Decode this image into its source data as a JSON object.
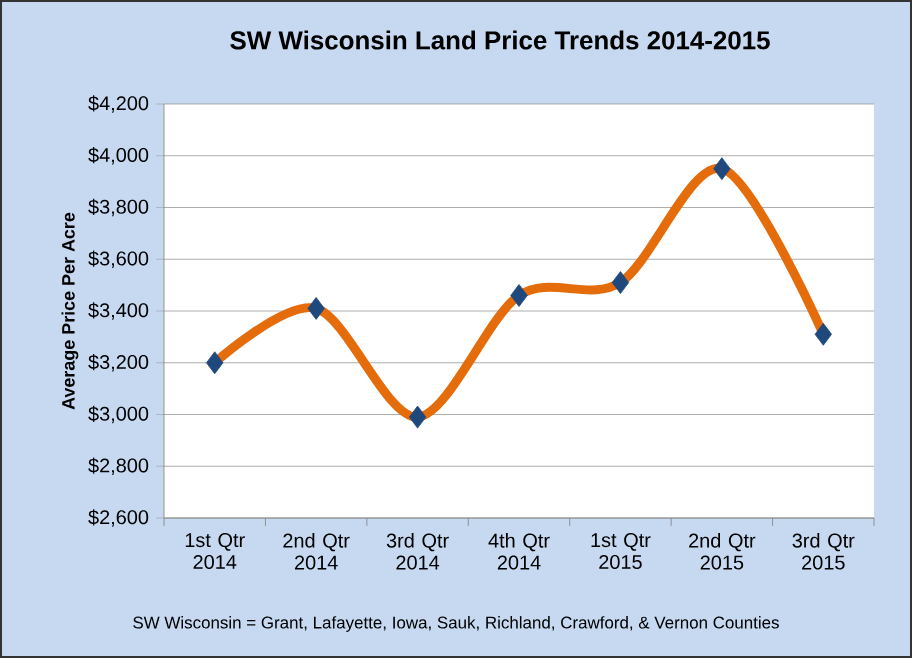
{
  "chart_data": {
    "type": "line",
    "title": "SW Wisconsin Land Price Trends 2014-2015",
    "ylabel": "Average Price Per Acre",
    "categories": [
      "1st Qtr 2014",
      "2nd Qtr 2014",
      "3rd Qtr 2014",
      "4th Qtr 2014",
      "1st Qtr 2015",
      "2nd Qtr 2015",
      "3rd Qtr 2015"
    ],
    "series": [
      {
        "color": "#e46c0a",
        "colors": [
          "#1f497d",
          "#1f497d",
          "#1f497d",
          "#1f497d",
          "#1f497d",
          "#1f497d",
          "#1f497d"
        ],
        "values": [
          3200,
          3410,
          2990,
          3460,
          3510,
          3950,
          3310
        ]
      }
    ],
    "ylim": [
      2600,
      4200
    ],
    "yticks": [
      {
        "value": 2600,
        "label": "$2,600"
      },
      {
        "value": 2800,
        "label": "$2,800"
      },
      {
        "value": 3000,
        "label": "$3,000"
      },
      {
        "value": 3200,
        "label": "$3,200"
      },
      {
        "value": 3400,
        "label": "$3,400"
      },
      {
        "value": 3600,
        "label": "$3,600"
      },
      {
        "value": 3800,
        "label": "$3,800"
      },
      {
        "value": 4000,
        "label": "$4,000"
      },
      {
        "value": 4200,
        "label": "$4,200"
      }
    ],
    "grid": "y",
    "marker": "diamond",
    "line_style": "solid",
    "annotations": [
      "SW Wisconsin = Grant, Lafayette, Iowa, Sauk, Richland, Crawford, & Vernon Counties"
    ]
  }
}
